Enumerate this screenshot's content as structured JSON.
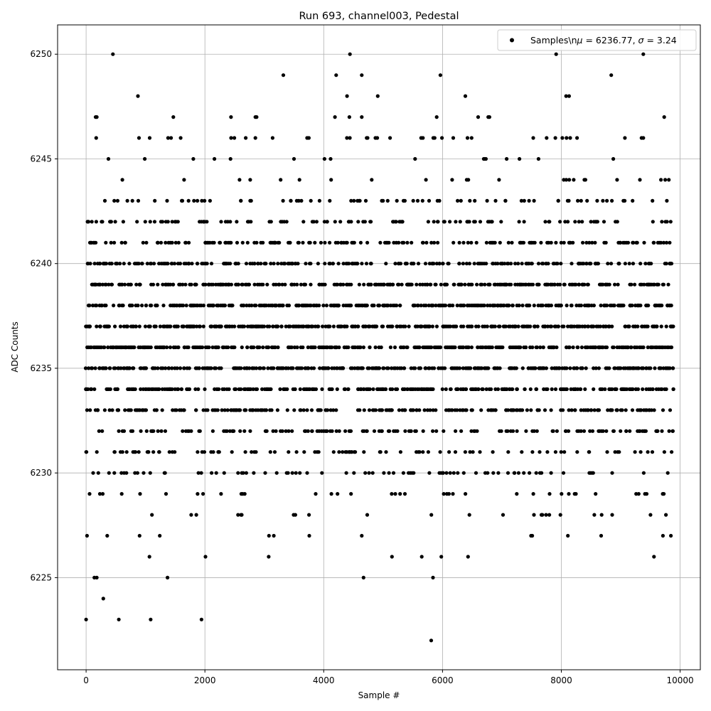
{
  "chart_data": {
    "type": "scatter",
    "title": "Run 693, channel003, Pedestal",
    "xlabel": "Sample #",
    "ylabel": "ADC Counts",
    "xlim": [
      -480,
      10340
    ],
    "ylim": [
      6220.6,
      6251.4
    ],
    "xticks": [
      0,
      2000,
      4000,
      6000,
      8000,
      10000
    ],
    "xtick_labels": [
      "0",
      "2000",
      "4000",
      "6000",
      "8000",
      "10000"
    ],
    "yticks": [
      6225,
      6230,
      6235,
      6240,
      6245,
      6250
    ],
    "ytick_labels": [
      "6225",
      "6230",
      "6235",
      "6240",
      "6245",
      "6250"
    ],
    "grid": true,
    "legend": {
      "placement": "top-right",
      "label_parts": [
        "Samples\\n",
        "μ",
        " = 6236.77, ",
        "σ",
        " = 3.24"
      ]
    },
    "marker_color": "#000000",
    "series": [
      {
        "name": "Samples\\nμ = 6236.77, σ = 3.24",
        "x_start": 0,
        "x_end": 9880,
        "x_step": 20,
        "y_level_weights": [
          [
            6222,
            1
          ],
          [
            6223,
            2
          ],
          [
            6224,
            1
          ],
          [
            6225,
            2
          ],
          [
            6226,
            3
          ],
          [
            6227,
            8
          ],
          [
            6228,
            32
          ],
          [
            6229,
            40
          ],
          [
            6230,
            80
          ],
          [
            6231,
            110
          ],
          [
            6232,
            175
          ],
          [
            6233,
            265
          ],
          [
            6234,
            345
          ],
          [
            6235,
            395
          ],
          [
            6236,
            440
          ],
          [
            6237,
            440
          ],
          [
            6238,
            400
          ],
          [
            6239,
            345
          ],
          [
            6240,
            270
          ],
          [
            6241,
            200
          ],
          [
            6242,
            145
          ],
          [
            6243,
            80
          ],
          [
            6244,
            42
          ],
          [
            6245,
            22
          ],
          [
            6246,
            12
          ],
          [
            6247,
            6
          ],
          [
            6248,
            3
          ],
          [
            6249,
            3
          ],
          [
            6250,
            1
          ]
        ],
        "points": [
          [
            0,
            6223
          ],
          [
            550,
            6223
          ],
          [
            290,
            6224
          ],
          [
            180,
            6225
          ],
          [
            1370,
            6225
          ],
          [
            5810,
            6222
          ],
          [
            5840,
            6225
          ],
          [
            2010,
            6226
          ],
          [
            5650,
            6226
          ],
          [
            6430,
            6226
          ],
          [
            9560,
            6226
          ],
          [
            15,
            6227
          ],
          [
            355,
            6227
          ],
          [
            900,
            6227
          ],
          [
            3160,
            6227
          ],
          [
            4640,
            6227
          ],
          [
            7490,
            6227
          ],
          [
            7510,
            6227
          ],
          [
            8110,
            6227
          ],
          [
            9710,
            6227
          ],
          [
            3320,
            6249
          ],
          [
            4210,
            6249
          ],
          [
            4640,
            6249
          ],
          [
            9380,
            6250
          ],
          [
            8080,
            6248
          ],
          [
            8130,
            6248
          ],
          [
            180,
            6247
          ],
          [
            2850,
            6247
          ],
          [
            2870,
            6247
          ],
          [
            4640,
            6247
          ],
          [
            6600,
            6247
          ],
          [
            6770,
            6247
          ],
          [
            6790,
            6247
          ],
          [
            170,
            6246
          ],
          [
            890,
            6246
          ],
          [
            1070,
            6246
          ],
          [
            1380,
            6246
          ],
          [
            2440,
            6246
          ],
          [
            2850,
            6246
          ],
          [
            3140,
            6246
          ],
          [
            3720,
            6246
          ],
          [
            3750,
            6246
          ],
          [
            4390,
            6246
          ],
          [
            4440,
            6246
          ],
          [
            4870,
            6246
          ],
          [
            5640,
            6246
          ],
          [
            5670,
            6246
          ],
          [
            5990,
            6246
          ],
          [
            6420,
            6246
          ],
          [
            6490,
            6246
          ],
          [
            8150,
            6246
          ],
          [
            9350,
            6246
          ],
          [
            9380,
            6246
          ]
        ]
      }
    ]
  }
}
